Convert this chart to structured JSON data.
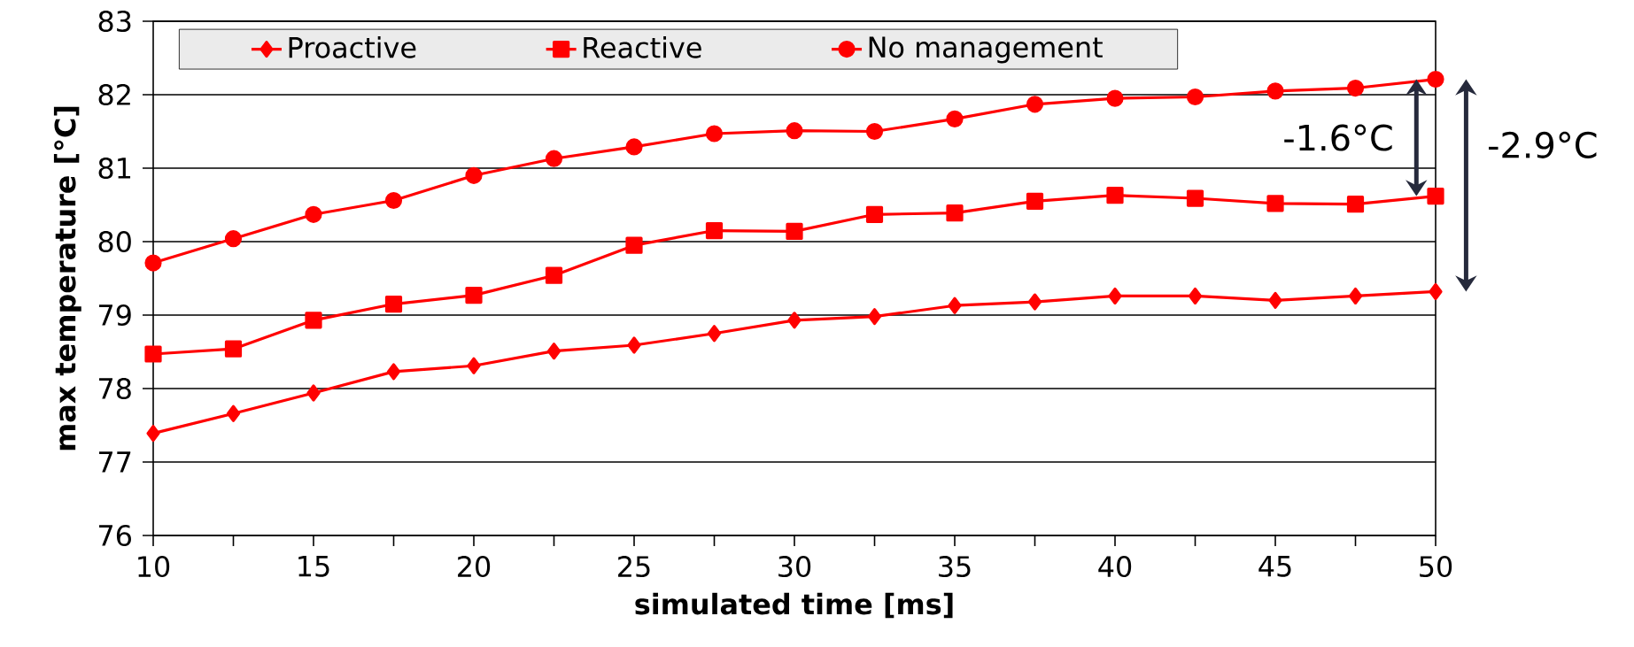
{
  "chart_data": {
    "type": "line",
    "xlabel": "simulated time [ms]",
    "ylabel": "max temperature [°C]",
    "x": [
      10,
      12.5,
      15,
      17.5,
      20,
      22.5,
      25,
      27.5,
      30,
      32.5,
      35,
      37.5,
      40,
      42.5,
      45,
      47.5,
      50
    ],
    "series": [
      {
        "name": "Proactive",
        "color": "#ff0000",
        "marker": "diamond",
        "values": [
          77.39,
          77.66,
          77.94,
          78.23,
          78.31,
          78.51,
          78.59,
          78.75,
          78.93,
          78.98,
          79.13,
          79.18,
          79.26,
          79.26,
          79.2,
          79.26,
          79.32
        ]
      },
      {
        "name": "Reactive",
        "color": "#ff0000",
        "marker": "square",
        "values": [
          78.47,
          78.54,
          78.93,
          79.15,
          79.27,
          79.54,
          79.95,
          80.15,
          80.14,
          80.37,
          80.39,
          80.55,
          80.63,
          80.59,
          80.52,
          80.51,
          80.62
        ]
      },
      {
        "name": "No management",
        "color": "#ff0000",
        "marker": "circle",
        "values": [
          79.71,
          80.04,
          80.37,
          80.56,
          80.9,
          81.13,
          81.29,
          81.47,
          81.51,
          81.5,
          81.67,
          81.87,
          81.95,
          81.97,
          82.05,
          82.09,
          82.21
        ]
      }
    ],
    "xlim": [
      10,
      50
    ],
    "ylim": [
      76,
      83
    ],
    "xticks": [
      10,
      {
        "value": 12.5,
        "label": null
      },
      15,
      {
        "value": 17.5,
        "label": null
      },
      20,
      {
        "value": 22.5,
        "label": null
      },
      25,
      {
        "value": 27.5,
        "label": null
      },
      30,
      {
        "value": 32.5,
        "label": null
      },
      35,
      {
        "value": 37.5,
        "label": null
      },
      40,
      {
        "value": 42.5,
        "label": null
      },
      45,
      {
        "value": 47.5,
        "label": null
      },
      50
    ],
    "yticks": [
      76,
      77,
      78,
      79,
      80,
      81,
      82,
      83
    ],
    "grid": "y",
    "legend": "top",
    "annotations": [
      "-1.6°C",
      "-2.9°C"
    ]
  }
}
